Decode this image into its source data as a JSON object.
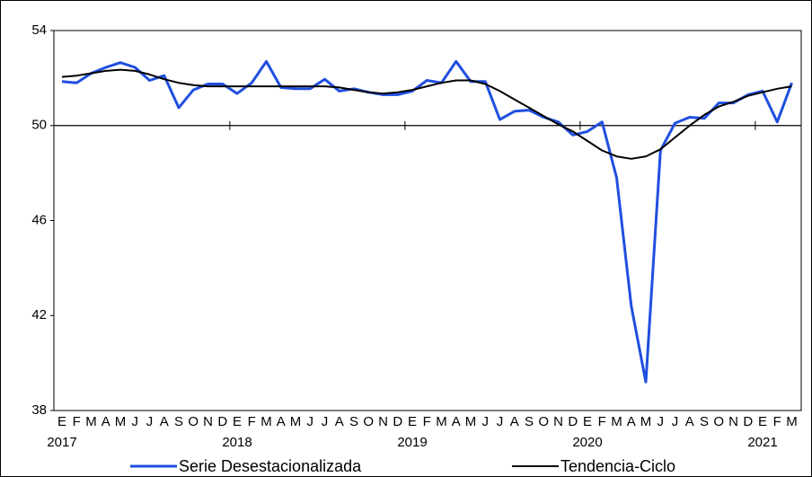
{
  "chart_data": {
    "type": "line",
    "categories": [
      "E",
      "F",
      "M",
      "A",
      "M",
      "J",
      "J",
      "A",
      "S",
      "O",
      "N",
      "D",
      "E",
      "F",
      "M",
      "A",
      "M",
      "J",
      "J",
      "A",
      "S",
      "O",
      "N",
      "D",
      "E",
      "F",
      "M",
      "A",
      "M",
      "J",
      "J",
      "A",
      "S",
      "O",
      "N",
      "D",
      "E",
      "F",
      "M",
      "A",
      "M",
      "J",
      "J",
      "A",
      "S",
      "O",
      "N",
      "D",
      "E",
      "F",
      "M"
    ],
    "year_labels": [
      "2017",
      "2018",
      "2019",
      "2020",
      "2021"
    ],
    "series": [
      {
        "name": "Serie Desestacionalizada",
        "color": "#1f4fe0",
        "values": [
          51.85,
          51.8,
          52.2,
          52.45,
          52.65,
          52.45,
          51.9,
          52.1,
          50.75,
          51.5,
          51.75,
          51.75,
          51.35,
          51.8,
          52.7,
          51.6,
          51.55,
          51.55,
          51.95,
          51.45,
          51.55,
          51.4,
          51.3,
          51.3,
          51.45,
          51.9,
          51.8,
          52.7,
          51.85,
          51.85,
          50.25,
          50.6,
          50.65,
          50.35,
          50.15,
          49.6,
          49.75,
          50.15,
          47.8,
          42.4,
          39.2,
          48.95,
          50.1,
          50.35,
          50.3,
          50.95,
          50.95,
          51.3,
          51.45,
          50.15,
          51.8
        ]
      },
      {
        "name": "Tendencia-Ciclo",
        "color": "#000000",
        "values": [
          52.05,
          52.1,
          52.2,
          52.3,
          52.35,
          52.3,
          52.15,
          51.95,
          51.8,
          51.7,
          51.65,
          51.65,
          51.65,
          51.65,
          51.65,
          51.65,
          51.65,
          51.65,
          51.65,
          51.6,
          51.5,
          51.4,
          51.35,
          51.4,
          51.5,
          51.65,
          51.8,
          51.9,
          51.9,
          51.75,
          51.45,
          51.1,
          50.75,
          50.4,
          50.05,
          49.75,
          49.35,
          48.95,
          48.7,
          48.6,
          48.7,
          49.0,
          49.5,
          50.0,
          50.45,
          50.8,
          51.0,
          51.25,
          51.4,
          51.55,
          51.65
        ]
      }
    ],
    "ylim": [
      38,
      54
    ],
    "yticks": [
      38,
      42,
      46,
      50,
      54
    ],
    "x_axis_at": 50,
    "legend": "bottom"
  }
}
